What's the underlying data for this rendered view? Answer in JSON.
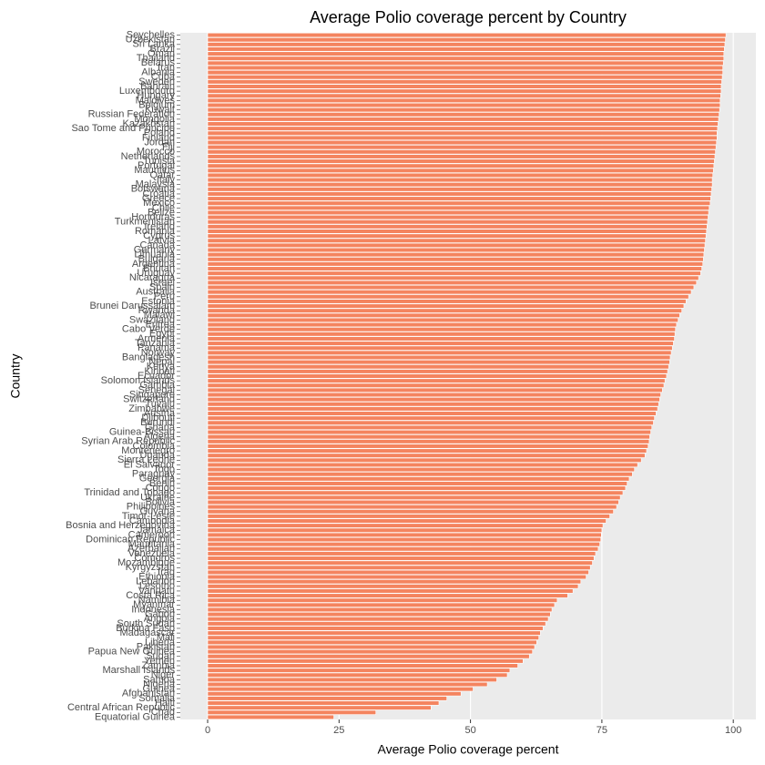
{
  "chart_data": {
    "type": "barh",
    "title": "Average Polio coverage percent by Country",
    "x_label": "Average Polio coverage percent",
    "y_label": "Country",
    "color": "#f4845f",
    "grid": true,
    "xlim": [
      -5.2,
      104.3
    ],
    "xticks": [
      0,
      25,
      50,
      75,
      100
    ],
    "categories": [
      "Seychelles",
      "Uzbekistan",
      "Sri Lanka",
      "Brazil",
      "Oman",
      "Thailand",
      "Belarus",
      "Iran",
      "Albania",
      "Cuba",
      "Sweden",
      "Bahrain",
      "Luxembourg",
      "Hungary",
      "Maldives",
      "Belgium",
      "Kuwait",
      "Russian Federation",
      "Mongolia",
      "Kazakhstan",
      "Sao Tome and Principe",
      "Poland",
      "Finland",
      "Jordan",
      "Fiji",
      "Morocco",
      "Netherlands",
      "Tunisia",
      "Portugal",
      "Mauritius",
      "Qatar",
      "Italy",
      "Malaysia",
      "Botswana",
      "Croatia",
      "Greece",
      "Mexico",
      "Chile",
      "Belize",
      "Honduras",
      "Turkmenistan",
      "Ireland",
      "Romania",
      "Cyprus",
      "Latvia",
      "Canada",
      "Germany",
      "Lithuania",
      "Bulgaria",
      "Argentina",
      "Bhutan",
      "Uruguay",
      "Nicaragua",
      "Israel",
      "Spain",
      "Australia",
      "Peru",
      "Estonia",
      "Brunei Darussalam",
      "Rwanda",
      "Malawi",
      "Swaziland",
      "Eritrea",
      "Cabo Verde",
      "Egypt",
      "Armenia",
      "Tanzania",
      "Panama",
      "Norway",
      "Bangladesh",
      "Nepal",
      "Kenya",
      "Kiribati",
      "Ecuador",
      "Solomon Islands",
      "Gambia",
      "Senegal",
      "Singapore",
      "Switzerland",
      "Tuvalu",
      "Zimbabwe",
      "Austria",
      "Djibouti",
      "Burundi",
      "Ghana",
      "Guinea-Bissau",
      "Algeria",
      "Syrian Arab Republic",
      "Colombia",
      "Montenegro",
      "Uganda",
      "Sierra Leone",
      "El Salvador",
      "Togo",
      "Paraguay",
      "Georgia",
      "Benin",
      "Congo",
      "Trinidad and Tobago",
      "Ukraine",
      "Bolivia",
      "Philippines",
      "Guyana",
      "Timor-Leste",
      "Cambodia",
      "Bosnia and Herzegovina",
      "Jamaica",
      "Cameroon",
      "Dominican Republic",
      "Mauritania",
      "Azerbaijan",
      "Venezuela",
      "Comoros",
      "Mozambique",
      "Kyrgyzstan",
      "Iraq",
      "Ethiopia",
      "Lebanon",
      "Lesotho",
      "Vanuatu",
      "Costa Rica",
      "Namibia",
      "Myanmar",
      "Indonesia",
      "Gabon",
      "Angola",
      "South Sudan",
      "Burkina Faso",
      "Madagascar",
      "Mali",
      "Liberia",
      "Pakistan",
      "Papua New Guinea",
      "Sudan",
      "Yemen",
      "Zambia",
      "Marshall Islands",
      "Niger",
      "Samoa",
      "Nigeria",
      "Guinea",
      "Afghanistan",
      "Somalia",
      "Haiti",
      "Central African Republic",
      "Chad",
      "Equatorial Guinea"
    ],
    "values": [
      98.6,
      98.5,
      98.4,
      98.3,
      98.2,
      98.2,
      98.1,
      98.0,
      98.0,
      97.9,
      97.8,
      97.7,
      97.7,
      97.6,
      97.5,
      97.5,
      97.4,
      97.3,
      97.2,
      97.1,
      97.0,
      96.9,
      96.9,
      96.8,
      96.7,
      96.6,
      96.5,
      96.4,
      96.3,
      96.2,
      96.1,
      96.0,
      96.0,
      95.9,
      95.8,
      95.7,
      95.6,
      95.4,
      95.3,
      95.2,
      95.1,
      95.0,
      94.9,
      94.8,
      94.7,
      94.6,
      94.5,
      94.4,
      94.3,
      94.2,
      94.0,
      93.8,
      93.4,
      93.0,
      92.5,
      92.0,
      91.5,
      91.0,
      90.6,
      90.2,
      89.8,
      89.5,
      89.2,
      89.0,
      88.9,
      88.8,
      88.6,
      88.4,
      88.2,
      88.0,
      87.9,
      87.7,
      87.5,
      87.3,
      87.0,
      86.8,
      86.5,
      86.2,
      86.0,
      85.8,
      85.6,
      85.3,
      85.0,
      84.8,
      84.5,
      84.3,
      84.1,
      84.0,
      83.8,
      83.5,
      83.2,
      82.5,
      81.8,
      81.2,
      80.8,
      80.2,
      79.8,
      79.5,
      79.0,
      78.5,
      78.2,
      77.8,
      77.2,
      76.5,
      75.8,
      75.2,
      75.0,
      74.9,
      74.8,
      74.6,
      74.3,
      73.8,
      73.5,
      73.2,
      72.8,
      72.5,
      72.0,
      71.0,
      70.5,
      69.5,
      68.5,
      66.5,
      66.0,
      65.5,
      65.2,
      64.8,
      64.3,
      63.8,
      63.3,
      63.0,
      62.6,
      62.2,
      61.8,
      61.2,
      60.0,
      59.0,
      57.5,
      57.0,
      55.0,
      53.2,
      50.5,
      48.2,
      45.5,
      44.0,
      42.5,
      32.0,
      24.0
    ]
  }
}
